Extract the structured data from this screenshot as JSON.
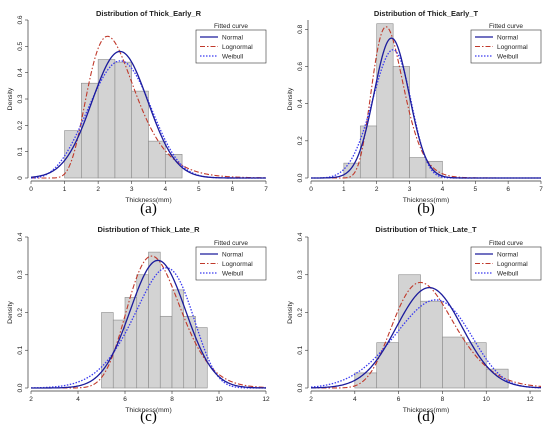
{
  "colors": {
    "bar_fill": "#d3d3d3",
    "bar_stroke": "#8a8a8a",
    "normal": "#1c1c9c",
    "lognormal": "#c0392b",
    "weibull": "#3a3af0"
  },
  "chart_data": [
    {
      "type": "bar",
      "panel_label": "(a)",
      "title": "Distribution of Thick_Early_R",
      "xlabel": "Thickness(mm)",
      "ylabel": "Density",
      "xlim": [
        0,
        7
      ],
      "ylim": [
        0,
        0.6
      ],
      "xticks": [
        "0",
        "1",
        "2",
        "3",
        "4",
        "5",
        "6",
        "7"
      ],
      "yticks": [
        "0",
        "0.1",
        "0.2",
        "0.3",
        "0.4",
        "0.5",
        "0.6"
      ],
      "legend_title": "Fitted curve",
      "legend_position": "top-right",
      "legend_entries": [
        "Normal",
        "Lognormal",
        "Weibull"
      ],
      "bins": [
        1.0,
        1.5,
        2.0,
        2.5,
        3.0,
        3.5,
        4.0,
        4.5
      ],
      "density": [
        0.18,
        0.36,
        0.45,
        0.44,
        0.33,
        0.14,
        0.09
      ],
      "curves": {
        "normal": {
          "mean": 2.65,
          "sd": 0.83
        },
        "lognormal": {
          "meanlog": 0.92,
          "sdlog": 0.31
        },
        "weibull": {
          "shape": 3.4,
          "scale": 2.95
        }
      }
    },
    {
      "type": "bar",
      "panel_label": "(b)",
      "title": "Distribution of Thick_Early_T",
      "xlabel": "Thickness(mm)",
      "ylabel": "Density",
      "xlim": [
        0,
        7
      ],
      "ylim": [
        0,
        0.85
      ],
      "xticks": [
        "0",
        "1",
        "2",
        "3",
        "4",
        "5",
        "6",
        "7"
      ],
      "yticks": [
        "0.0",
        "0.2",
        "0.4",
        "0.6",
        "0.8"
      ],
      "legend_title": "Fitted curve",
      "legend_position": "top-right",
      "legend_entries": [
        "Normal",
        "Lognormal",
        "Weibull"
      ],
      "bins": [
        1.0,
        1.5,
        2.0,
        2.5,
        3.0,
        3.5,
        4.0
      ],
      "density": [
        0.08,
        0.28,
        0.83,
        0.6,
        0.11,
        0.09
      ],
      "curves": {
        "normal": {
          "mean": 2.45,
          "sd": 0.53
        },
        "lognormal": {
          "meanlog": 0.87,
          "sdlog": 0.21
        },
        "weibull": {
          "shape": 4.8,
          "scale": 2.62
        }
      }
    },
    {
      "type": "bar",
      "panel_label": "(c)",
      "title": "Distribution of Thick_Late_R",
      "xlabel": "Thickness(mm)",
      "ylabel": "Density",
      "xlim": [
        2,
        12
      ],
      "ylim": [
        0,
        0.4
      ],
      "xticks": [
        "2",
        "4",
        "6",
        "8",
        "10",
        "12"
      ],
      "yticks": [
        "0.0",
        "0.1",
        "0.2",
        "0.3",
        "0.4"
      ],
      "legend_title": "Fitted curve",
      "legend_position": "top-right",
      "legend_entries": [
        "Normal",
        "Lognormal",
        "Weibull"
      ],
      "bins": [
        5.0,
        5.5,
        6.0,
        6.5,
        7.0,
        7.5,
        8.0,
        8.5,
        9.0,
        9.5
      ],
      "density": [
        0.2,
        0.18,
        0.24,
        0.3,
        0.36,
        0.19,
        0.26,
        0.19,
        0.16
      ],
      "curves": {
        "normal": {
          "mean": 7.4,
          "sd": 1.18
        },
        "lognormal": {
          "meanlog": 1.99,
          "sdlog": 0.158
        },
        "weibull": {
          "shape": 6.8,
          "scale": 7.95
        }
      }
    },
    {
      "type": "bar",
      "panel_label": "(d)",
      "title": "Distribution of Thick_Late_T",
      "xlabel": "Thickness(mm)",
      "ylabel": "Density",
      "xlim": [
        2,
        12.5
      ],
      "ylim": [
        0,
        0.4
      ],
      "xticks": [
        "2",
        "4",
        "6",
        "8",
        "10",
        "12"
      ],
      "yticks": [
        "0.0",
        "0.1",
        "0.2",
        "0.3",
        "0.4"
      ],
      "legend_title": "Fitted curve",
      "legend_position": "top-right",
      "legend_entries": [
        "Normal",
        "Lognormal",
        "Weibull"
      ],
      "bins": [
        4.0,
        5.0,
        6.0,
        7.0,
        8.0,
        9.0,
        10.0,
        11.0
      ],
      "density": [
        0.04,
        0.12,
        0.3,
        0.23,
        0.135,
        0.12,
        0.05
      ],
      "curves": {
        "normal": {
          "mean": 7.4,
          "sd": 1.5
        },
        "lognormal": {
          "meanlog": 1.985,
          "sdlog": 0.2
        },
        "weibull": {
          "shape": 5.0,
          "scale": 8.05
        }
      }
    }
  ]
}
